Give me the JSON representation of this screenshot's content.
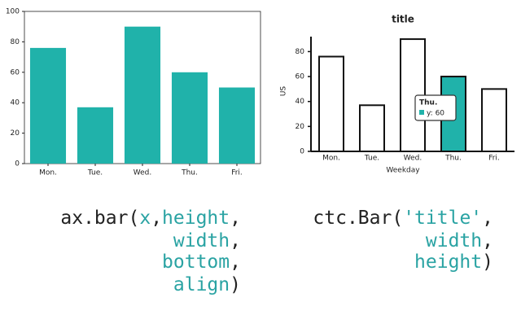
{
  "chart_data": [
    {
      "type": "bar",
      "categories": [
        "Mon.",
        "Tue.",
        "Wed.",
        "Thu.",
        "Fri."
      ],
      "values": [
        76,
        37,
        90,
        60,
        50
      ],
      "color": "#20b2aa",
      "ylim": [
        0,
        100
      ],
      "yticks": [
        0,
        20,
        40,
        60,
        80,
        100
      ]
    },
    {
      "type": "sketch-bar",
      "title": "title",
      "y_label": "US",
      "x_label": "Weekday",
      "categories": [
        "Mon.",
        "Tue.",
        "Wed.",
        "Thu.",
        "Fri."
      ],
      "series": [
        {
          "name": "y",
          "values": [
            76,
            37,
            90,
            60,
            50
          ]
        }
      ],
      "color": "#ffffff",
      "highlight_color": "#20b2aa",
      "ylim": [
        0,
        92
      ],
      "yticks": [
        0,
        20,
        40,
        60,
        80
      ],
      "tooltip": {
        "title": "Thu.",
        "label": "y: 60"
      }
    }
  ],
  "code": {
    "left": [
      [
        {
          "text": "ax.bar(",
          "color": "#222222"
        },
        {
          "text": "x",
          "color": "#2aa3a3"
        },
        {
          "text": ",",
          "color": "#222222"
        },
        {
          "text": "height",
          "color": "#2aa3a3"
        },
        {
          "text": ",",
          "color": "#222222"
        }
      ],
      [
        {
          "text": "width",
          "color": "#2aa3a3"
        },
        {
          "text": ",",
          "color": "#222222"
        }
      ],
      [
        {
          "text": "bottom",
          "color": "#2aa3a3"
        },
        {
          "text": ",",
          "color": "#222222"
        }
      ],
      [
        {
          "text": "align",
          "color": "#2aa3a3"
        },
        {
          "text": ")",
          "color": "#222222"
        }
      ]
    ],
    "right": [
      [
        {
          "text": "ctc.Bar(",
          "color": "#222222"
        },
        {
          "text": "'title'",
          "color": "#2aa3a3"
        },
        {
          "text": ",",
          "color": "#222222"
        }
      ],
      [
        {
          "text": "width",
          "color": "#2aa3a3"
        },
        {
          "text": ",",
          "color": "#222222"
        }
      ],
      [
        {
          "text": "height",
          "color": "#2aa3a3"
        },
        {
          "text": ")",
          "color": "#222222"
        }
      ]
    ]
  }
}
